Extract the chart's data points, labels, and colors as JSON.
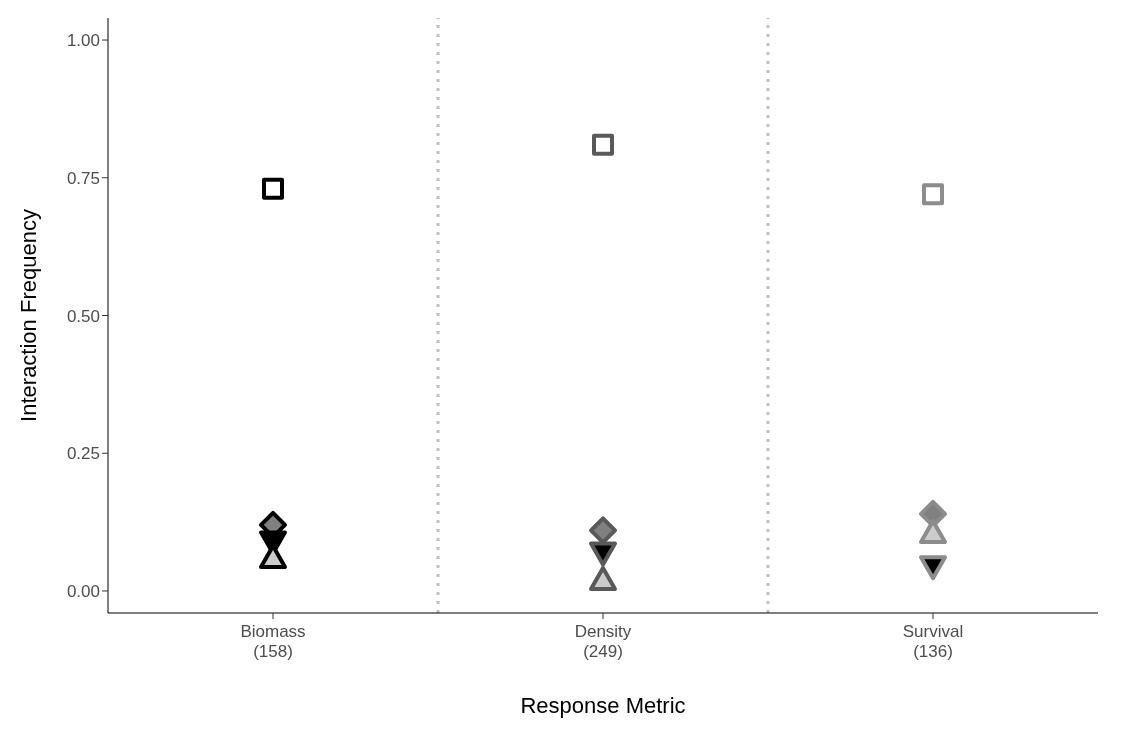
{
  "chart_data": {
    "type": "scatter",
    "xlabel": "Response Metric",
    "ylabel": "Interaction Frequency",
    "categories": [
      "Biomass\n(158)",
      "Density\n(249)",
      "Survival\n(136)"
    ],
    "ylim": [
      -0.04,
      1.04
    ],
    "yticks": [
      {
        "value": 0,
        "label": "0.00"
      },
      {
        "value": 0.25,
        "label": "0.25"
      },
      {
        "value": 0.5,
        "label": "0.50"
      },
      {
        "value": 0.75,
        "label": "0.75"
      },
      {
        "value": 1,
        "label": "1.00"
      }
    ],
    "grid": false,
    "legend": false,
    "series": [
      {
        "marker": "square",
        "colors": [
          "#000000",
          "#595959",
          "#8c8c8c"
        ],
        "values": [
          0.73,
          0.81,
          0.72
        ]
      },
      {
        "marker": "diamond",
        "color": "#808080",
        "colors": [
          "#000000",
          "#595959",
          "#8c8c8c"
        ],
        "values": [
          0.12,
          0.11,
          0.14
        ]
      },
      {
        "marker": "triangle-down",
        "color": "#000000",
        "colors": [
          "#000000",
          "#595959",
          "#8c8c8c"
        ],
        "values": [
          0.09,
          0.07,
          0.045
        ]
      },
      {
        "marker": "triangle",
        "color": "#cccccc",
        "colors": [
          "#000000",
          "#595959",
          "#8c8c8c"
        ],
        "values": [
          0.06,
          0.02,
          0.105
        ]
      }
    ]
  }
}
